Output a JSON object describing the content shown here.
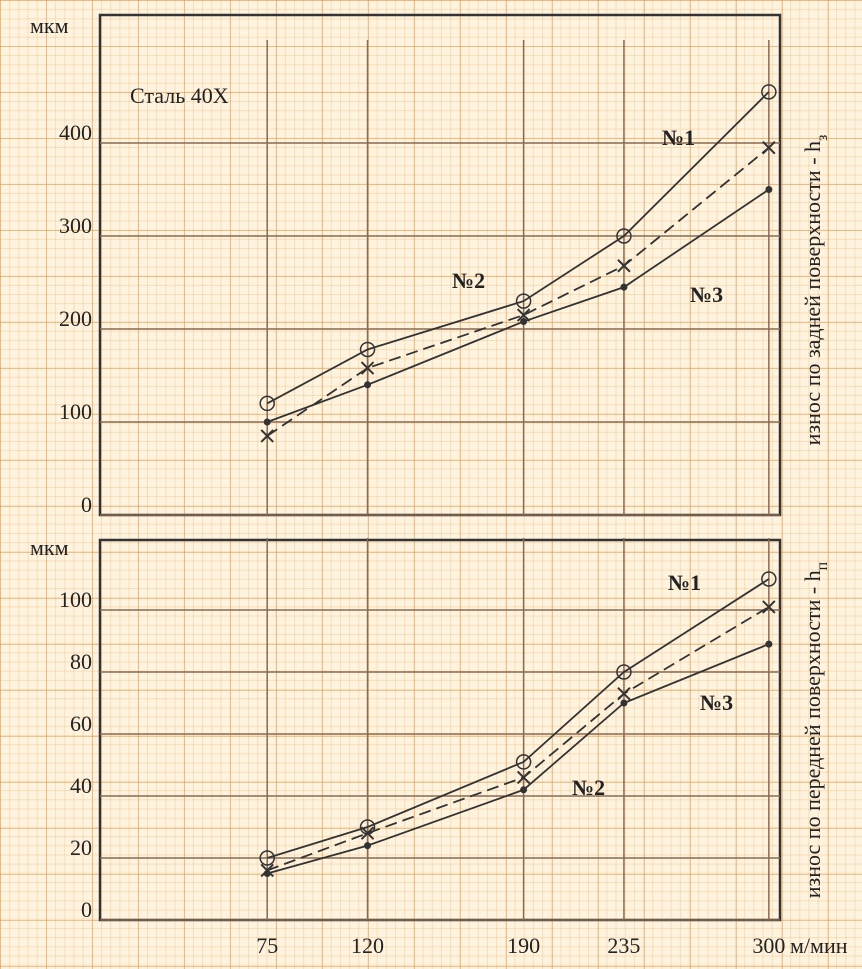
{
  "chart_data": [
    {
      "type": "line",
      "title": "Сталь 40Х",
      "y_unit": "мкм",
      "y_label": {
        "text": "износ по задней поверхности - h",
        "subscript": "з"
      },
      "x": [
        75,
        120,
        190,
        235,
        300
      ],
      "xlim": [
        0,
        305
      ],
      "ylim": [
        0,
        500
      ],
      "yticks": [
        0,
        100,
        200,
        300,
        400
      ],
      "grid": true,
      "series": [
        {
          "name": "№1",
          "color": "#333333",
          "marker": "circle",
          "dashed": false,
          "values": [
            120,
            178,
            230,
            300,
            455
          ]
        },
        {
          "name": "№2",
          "color": "#333333",
          "marker": "cross",
          "dashed": true,
          "values": [
            85,
            158,
            215,
            268,
            395
          ]
        },
        {
          "name": "№3",
          "color": "#333333",
          "marker": "dot",
          "dashed": false,
          "values": [
            100,
            140,
            208,
            245,
            350
          ]
        }
      ]
    },
    {
      "type": "line",
      "y_unit": "мкм",
      "x_unit": "м/мин",
      "y_label": {
        "text": "износ по передней поверхности - h",
        "subscript": "п"
      },
      "x": [
        75,
        120,
        190,
        235,
        300
      ],
      "xlim": [
        0,
        305
      ],
      "xticks": [
        75,
        120,
        190,
        235,
        300
      ],
      "ylim": [
        0,
        120
      ],
      "yticks": [
        0,
        20,
        40,
        60,
        80,
        100
      ],
      "grid": true,
      "series": [
        {
          "name": "№1",
          "color": "#333333",
          "marker": "circle",
          "dashed": false,
          "values": [
            20,
            30,
            51,
            80,
            110
          ]
        },
        {
          "name": "№2",
          "color": "#333333",
          "marker": "cross",
          "dashed": true,
          "values": [
            16,
            28,
            46,
            73,
            101
          ]
        },
        {
          "name": "№3",
          "color": "#333333",
          "marker": "dot",
          "dashed": false,
          "values": [
            15,
            24,
            42,
            70,
            89
          ]
        }
      ]
    }
  ]
}
